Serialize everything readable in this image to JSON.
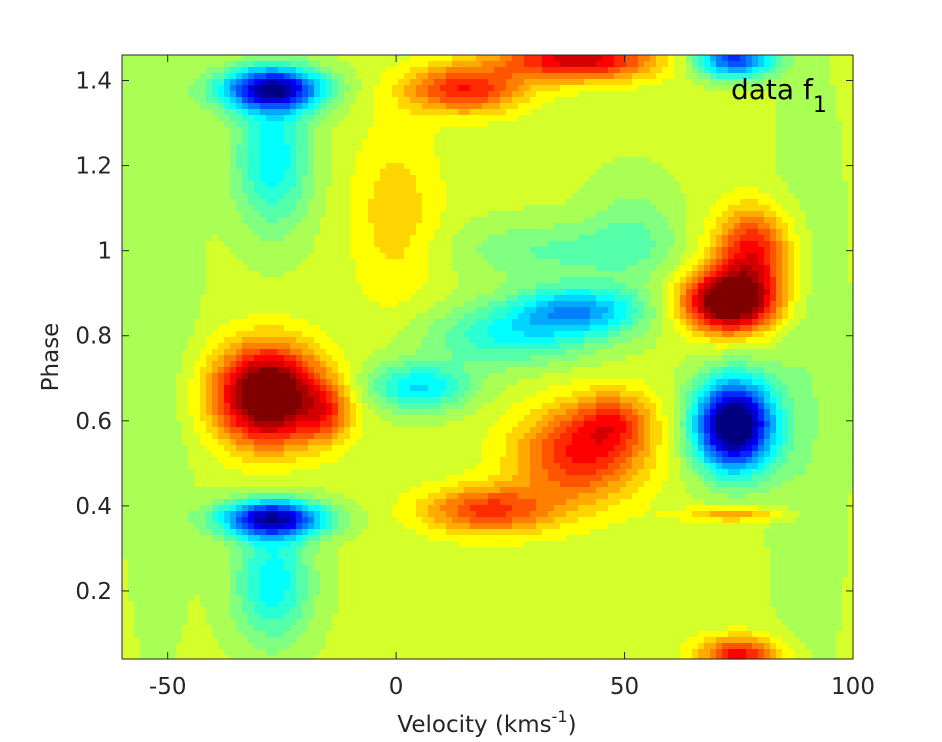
{
  "chart_data": {
    "type": "heatmap",
    "title": "",
    "panel_label": "data f",
    "panel_label_subscript": "1",
    "xlabel": "Velocity (kms",
    "xlabel_superscript": "-1",
    "xlabel_suffix": ")",
    "ylabel": "Phase",
    "xlim": [
      -60,
      100
    ],
    "ylim": [
      0.04,
      1.46
    ],
    "x_ticks": [
      -50,
      0,
      50,
      100
    ],
    "x_tick_labels": [
      "-50",
      "0",
      "50",
      "100"
    ],
    "y_ticks": [
      0.2,
      0.4,
      0.6,
      0.8,
      1.0,
      1.2,
      1.4
    ],
    "y_tick_labels": [
      "0.2",
      "0.4",
      "0.6",
      "0.8",
      "1",
      "1.2",
      "1.4"
    ],
    "colormap": "jet",
    "value_range": [
      -1,
      1
    ],
    "background_value": 0.15,
    "features": [
      {
        "x": -27,
        "y": 1.38,
        "sx": 8,
        "sy": 0.035,
        "amp": -1.0
      },
      {
        "x": -27,
        "y": 1.22,
        "sx": 6,
        "sy": 0.12,
        "amp": -0.42
      },
      {
        "x": -28,
        "y": 0.66,
        "sx": 8,
        "sy": 0.08,
        "amp": 1.1
      },
      {
        "x": -15,
        "y": 0.62,
        "sx": 4,
        "sy": 0.05,
        "amp": 0.35
      },
      {
        "x": -27,
        "y": 0.37,
        "sx": 8,
        "sy": 0.03,
        "amp": -1.0
      },
      {
        "x": -27,
        "y": 0.22,
        "sx": 6,
        "sy": 0.1,
        "amp": -0.42
      },
      {
        "x": 74,
        "y": 0.59,
        "sx": 6,
        "sy": 0.075,
        "amp": -1.35
      },
      {
        "x": 73,
        "y": 0.88,
        "sx": 7,
        "sy": 0.05,
        "amp": 1.05
      },
      {
        "x": 78,
        "y": 1.0,
        "sx": 6,
        "sy": 0.07,
        "amp": 0.6
      },
      {
        "x": 74,
        "y": 1.45,
        "sx": 6,
        "sy": 0.03,
        "amp": -0.8
      },
      {
        "x": 75,
        "y": 0.05,
        "sx": 6,
        "sy": 0.03,
        "amp": 0.6
      },
      {
        "x": 74,
        "y": 0.38,
        "sx": 8,
        "sy": 0.012,
        "amp": 0.3
      },
      {
        "x": 40,
        "y": 0.52,
        "sx": 10,
        "sy": 0.08,
        "amp": 0.55
      },
      {
        "x": 20,
        "y": 0.39,
        "sx": 10,
        "sy": 0.04,
        "amp": 0.5
      },
      {
        "x": 48,
        "y": 0.6,
        "sx": 6,
        "sy": 0.05,
        "amp": 0.35
      },
      {
        "x": 15,
        "y": 1.38,
        "sx": 9,
        "sy": 0.04,
        "amp": 0.55
      },
      {
        "x": 40,
        "y": 1.45,
        "sx": 12,
        "sy": 0.035,
        "amp": 0.7
      },
      {
        "x": 40,
        "y": 0.86,
        "sx": 10,
        "sy": 0.04,
        "amp": -0.55
      },
      {
        "x": 25,
        "y": 0.8,
        "sx": 13,
        "sy": 0.05,
        "amp": -0.35
      },
      {
        "x": 5,
        "y": 0.68,
        "sx": 8,
        "sy": 0.04,
        "amp": -0.45
      },
      {
        "x": 35,
        "y": 1.0,
        "sx": 16,
        "sy": 0.05,
        "amp": -0.2
      },
      {
        "x": 52,
        "y": 1.05,
        "sx": 7,
        "sy": 0.09,
        "amp": -0.15
      },
      {
        "x": 90,
        "y": 0.7,
        "sx": 6,
        "sy": 0.5,
        "amp": -0.1
      },
      {
        "x": 0,
        "y": 1.08,
        "sx": 7,
        "sy": 0.15,
        "amp": 0.2
      },
      {
        "x": -52,
        "y": 0.9,
        "sx": 6,
        "sy": 0.55,
        "amp": -0.1
      }
    ]
  }
}
